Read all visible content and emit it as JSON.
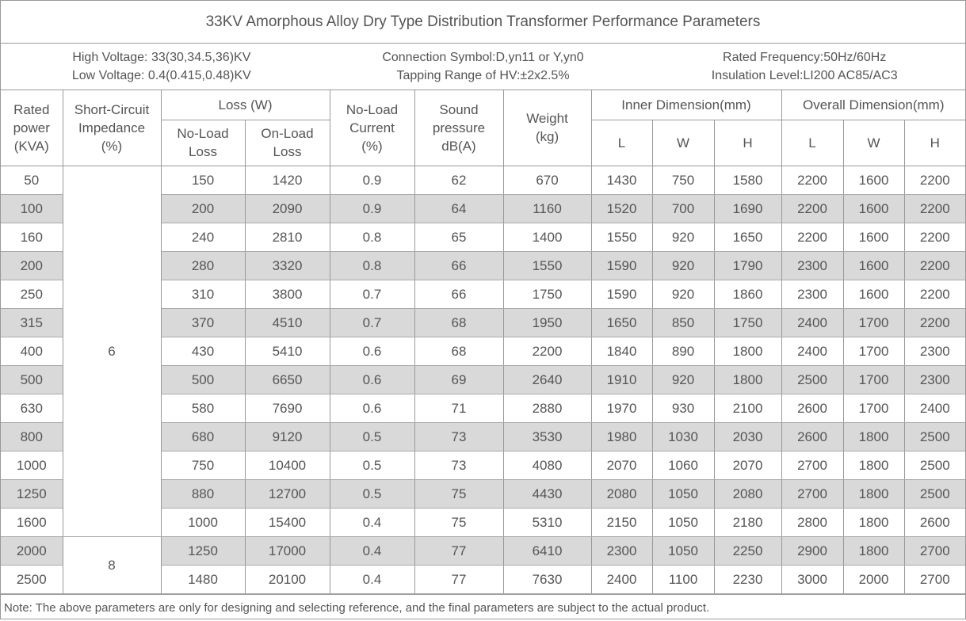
{
  "title": "33KV Amorphous Alloy Dry Type Distribution Transformer Performance Parameters",
  "info": [
    [
      "High Voltage: 33(30,34.5,36)KV",
      "Low Voltage: 0.4(0.415,0.48)KV"
    ],
    [
      "Connection Symbol:D,yn11 or Y,yn0",
      "Tapping Range of HV:±2x2.5%"
    ],
    [
      "Rated Frequency:50Hz/60Hz",
      "Insulation Level:LI200 AC85/AC3"
    ]
  ],
  "table": {
    "header_top": [
      "Rated\npower\n(KVA)",
      "Short-Circuit\nImpedance\n(%)",
      "Loss (W)",
      "No-Load\nCurrent\n(%)",
      "Sound\npressure\ndB(A)",
      "Weight\n(kg)",
      "Inner Dimension(mm)",
      "Overall Dimension(mm)"
    ],
    "header_sub": [
      "No-Load\nLoss",
      "On-Load\nLoss",
      "L",
      "W",
      "H",
      "L",
      "W",
      "H"
    ],
    "rows": [
      [
        50,
        6,
        150,
        1420,
        0.9,
        62,
        670,
        1430,
        750,
        1580,
        2200,
        1600,
        2200
      ],
      [
        100,
        null,
        200,
        2090,
        0.9,
        64,
        1160,
        1520,
        700,
        1690,
        2200,
        1600,
        2200
      ],
      [
        160,
        null,
        240,
        2810,
        0.8,
        65,
        1400,
        1550,
        920,
        1650,
        2200,
        1600,
        2200
      ],
      [
        200,
        null,
        280,
        3320,
        0.8,
        66,
        1550,
        1590,
        920,
        1790,
        2300,
        1600,
        2200
      ],
      [
        250,
        null,
        310,
        3800,
        0.7,
        66,
        1750,
        1590,
        920,
        1860,
        2300,
        1600,
        2200
      ],
      [
        315,
        null,
        370,
        4510,
        0.7,
        68,
        1950,
        1650,
        850,
        1750,
        2400,
        1700,
        2200
      ],
      [
        400,
        null,
        430,
        5410,
        0.6,
        68,
        2200,
        1840,
        890,
        1800,
        2400,
        1700,
        2300
      ],
      [
        500,
        null,
        500,
        6650,
        0.6,
        69,
        2640,
        1910,
        920,
        1800,
        2500,
        1700,
        2300
      ],
      [
        630,
        null,
        580,
        7690,
        0.6,
        71,
        2880,
        1970,
        930,
        2100,
        2600,
        1700,
        2400
      ],
      [
        800,
        null,
        680,
        9120,
        0.5,
        73,
        3530,
        1980,
        1030,
        2030,
        2600,
        1800,
        2500
      ],
      [
        1000,
        null,
        750,
        10400,
        0.5,
        73,
        4080,
        2070,
        1060,
        2070,
        2700,
        1800,
        2500
      ],
      [
        1250,
        null,
        880,
        12700,
        0.5,
        75,
        4430,
        2080,
        1050,
        2080,
        2700,
        1800,
        2500
      ],
      [
        1600,
        null,
        1000,
        15400,
        0.4,
        75,
        5310,
        2150,
        1050,
        2180,
        2800,
        1800,
        2600
      ],
      [
        2000,
        8,
        1250,
        17000,
        0.4,
        77,
        6410,
        2300,
        1050,
        2250,
        2900,
        1800,
        2700
      ],
      [
        2500,
        null,
        1480,
        20100,
        0.4,
        77,
        7630,
        2400,
        1100,
        2230,
        3000,
        2000,
        2700
      ]
    ]
  },
  "note": "Note: The above parameters are only for designing and selecting  reference, and the final parameters are subject to the actual product."
}
